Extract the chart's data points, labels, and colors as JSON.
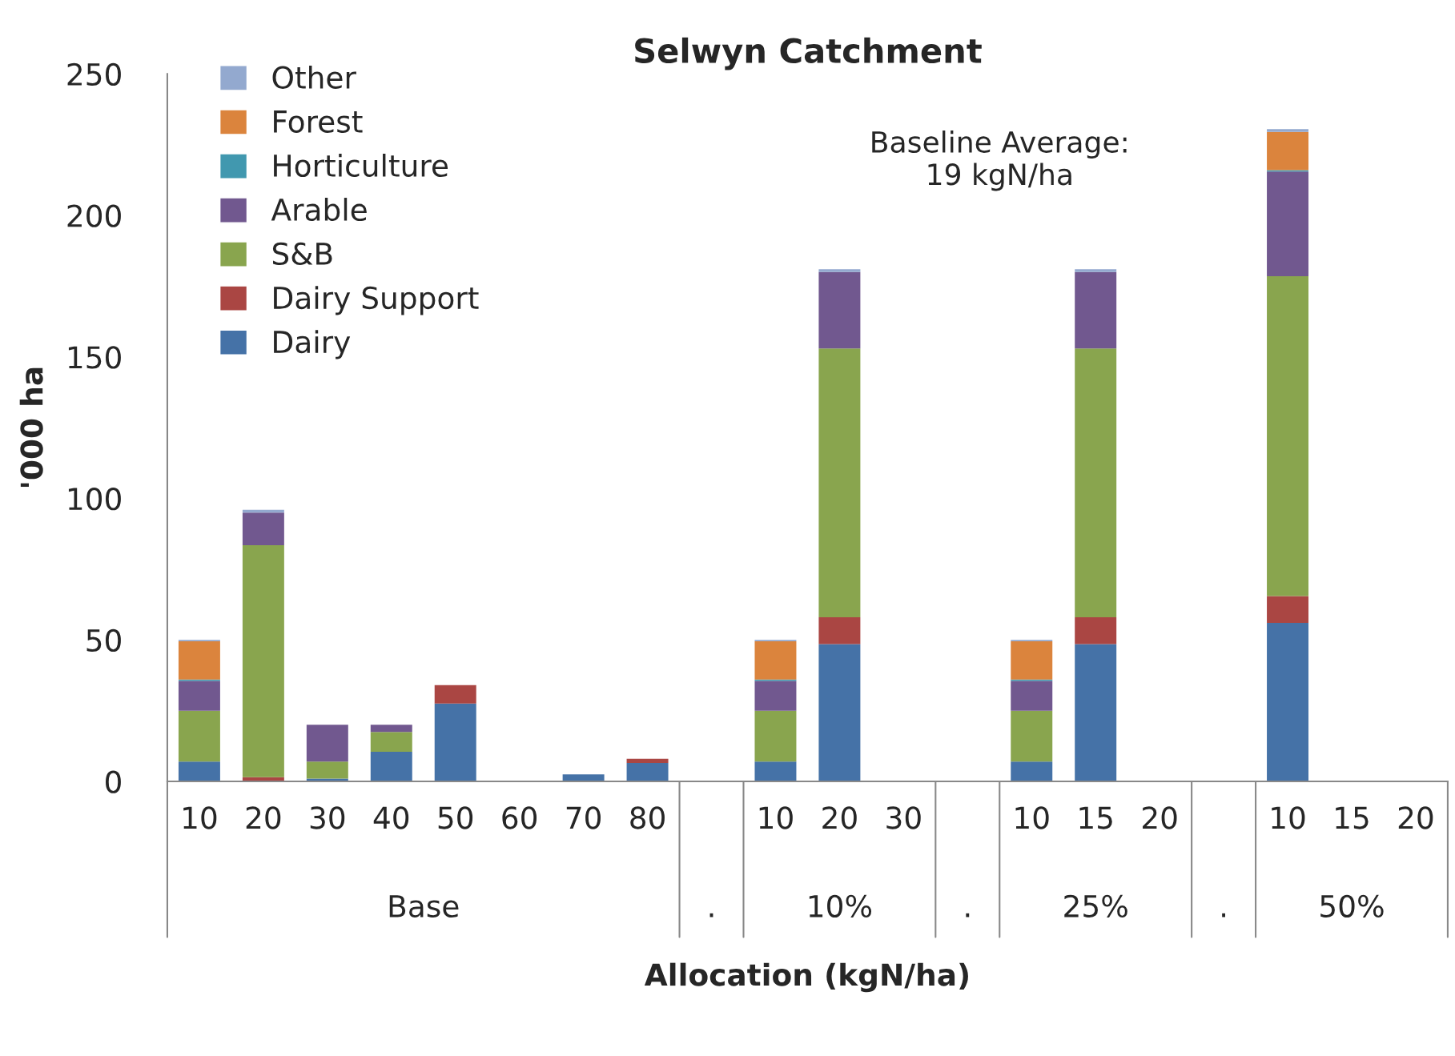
{
  "chart_data": {
    "type": "bar",
    "title": "Selwyn Catchment",
    "xlabel": "Allocation (kgN/ha)",
    "ylabel": "'000 ha",
    "stacked": true,
    "categories": [
      "10",
      "20",
      "30",
      "40",
      "50",
      "60",
      "70",
      "80",
      null,
      "10",
      "20",
      "30",
      null,
      "10",
      "15",
      "20",
      null,
      "10",
      "15",
      "20"
    ],
    "series": [
      {
        "name": "Dairy",
        "color": "#4572a7",
        "values": [
          7,
          0,
          1,
          10.5,
          27.5,
          0,
          2.5,
          6.5,
          0,
          7,
          48.5,
          0,
          0,
          7,
          48.5,
          0,
          0,
          56,
          0,
          0
        ]
      },
      {
        "name": "Dairy Support",
        "color": "#aa4643",
        "values": [
          0,
          1.5,
          0,
          0,
          6.5,
          0,
          0,
          1.5,
          0,
          0,
          9.5,
          0,
          0,
          0,
          9.5,
          0,
          0,
          9.5,
          0,
          0
        ]
      },
      {
        "name": "S&B",
        "color": "#89a54e",
        "values": [
          18,
          82,
          6,
          7,
          0,
          0,
          0,
          0,
          0,
          18,
          95,
          0,
          0,
          18,
          95,
          0,
          0,
          113,
          0,
          0
        ]
      },
      {
        "name": "Arable",
        "color": "#71588f",
        "values": [
          10.5,
          11.5,
          13,
          2.5,
          0,
          0,
          0,
          0,
          0,
          10.5,
          27,
          0,
          0,
          10.5,
          27,
          0,
          0,
          37,
          0,
          0
        ]
      },
      {
        "name": "Horticulture",
        "color": "#4198af",
        "values": [
          0.5,
          0,
          0,
          0,
          0,
          0,
          0,
          0,
          0,
          0.5,
          0,
          0,
          0,
          0.5,
          0,
          0,
          0,
          0.5,
          0,
          0
        ]
      },
      {
        "name": "Forest",
        "color": "#db843d",
        "values": [
          13.5,
          0,
          0,
          0,
          0,
          0,
          0,
          0,
          0,
          13.5,
          0,
          0,
          0,
          13.5,
          0,
          0,
          0,
          13.5,
          0,
          0
        ]
      },
      {
        "name": "Other",
        "color": "#93a9cf",
        "values": [
          0.5,
          1,
          0,
          0,
          0,
          0,
          0,
          0,
          0,
          0.5,
          1,
          0,
          0,
          0.5,
          1,
          0,
          0,
          1,
          0,
          0
        ]
      }
    ],
    "ylim": [
      0,
      250
    ],
    "yticks": [
      0,
      50,
      100,
      150,
      200,
      250
    ],
    "grid": false,
    "legend": "top left",
    "annotations": [
      "Baseline Average:\n19 kgN/ha",
      "Base",
      ".",
      "10%",
      ".",
      "25%",
      ".",
      "50%"
    ]
  }
}
